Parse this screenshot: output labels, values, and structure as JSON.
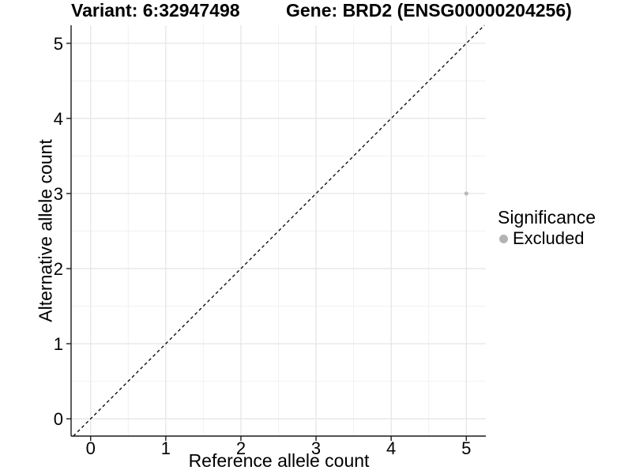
{
  "chart_data": {
    "type": "scatter",
    "title_left": "Variant: 6:32947498",
    "title_right": "Gene: BRD2 (ENSG00000204256)",
    "xlabel": "Reference allele count",
    "ylabel": "Alternative allele count",
    "x_ticks": [
      0,
      1,
      2,
      3,
      4,
      5
    ],
    "y_ticks": [
      0,
      1,
      2,
      3,
      4,
      5
    ],
    "minor_grid_positions": [
      0.5,
      1.5,
      2.5,
      3.5,
      4.5
    ],
    "xlim": [
      -0.26,
      5.26
    ],
    "ylim": [
      -0.23,
      5.24
    ],
    "grid": "major+minor",
    "identity_line": {
      "equation": "y = x",
      "style": "dashed",
      "color": "#000000"
    },
    "series": [
      {
        "name": "Excluded",
        "color": "#b9b9b9",
        "points": [
          [
            5,
            3
          ]
        ]
      }
    ],
    "legend": {
      "title": "Significance",
      "position": "right",
      "items": [
        {
          "label": "Excluded",
          "color": "#b3b3b3"
        }
      ]
    }
  },
  "colors": {
    "background": "#ffffff",
    "text": "#000000",
    "axis_line": "#1a1a1a",
    "tick_mark": "#1a1a1a",
    "major_grid": "#e4e4e4",
    "minor_grid": "#f1f1f1"
  }
}
